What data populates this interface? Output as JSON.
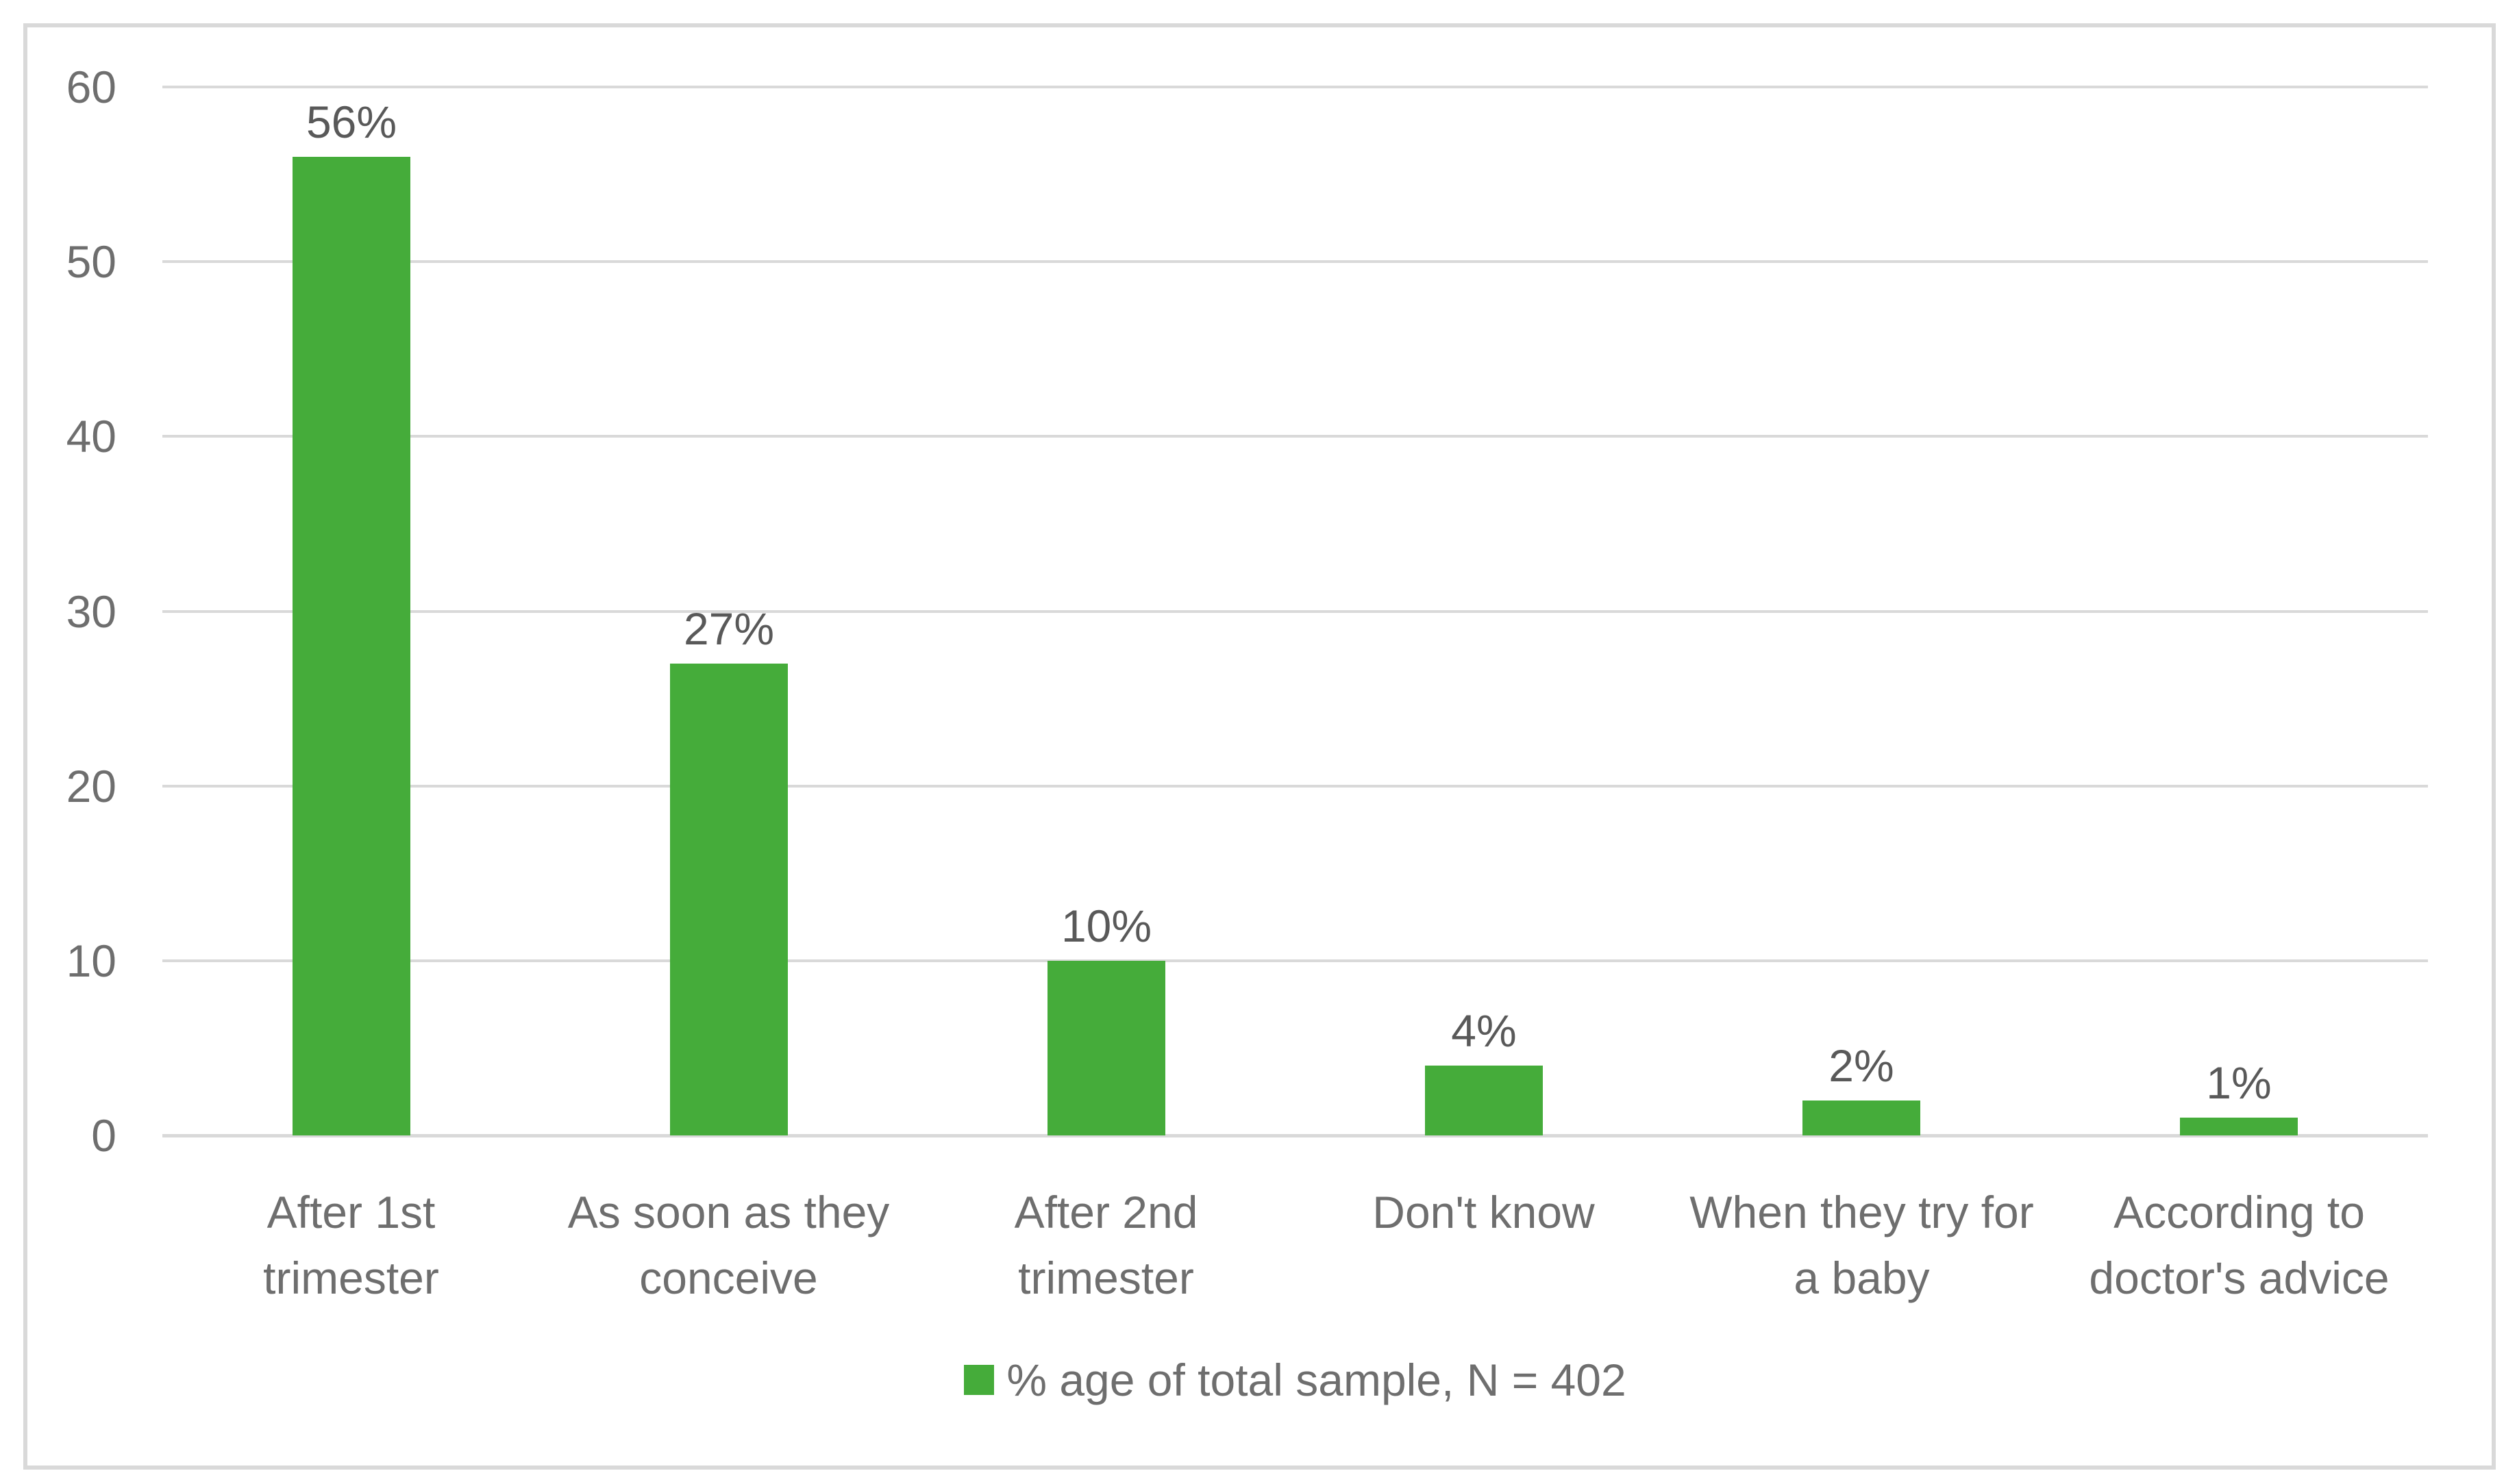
{
  "chart_data": {
    "type": "bar",
    "title": "",
    "xlabel": "",
    "ylabel": "",
    "categories": [
      "After 1st\ntrimester",
      "As soon as they\nconceive",
      "After 2nd\ntrimester",
      "Don't know",
      "When they try for\na baby",
      "According to\ndoctor's advice"
    ],
    "values": [
      56,
      27,
      10,
      4,
      2,
      1
    ],
    "data_labels": [
      "56%",
      "27%",
      "10%",
      "4%",
      "2%",
      "1%"
    ],
    "ylim": [
      0,
      60
    ],
    "yticks": [
      0,
      10,
      20,
      30,
      40,
      50,
      60
    ],
    "grid": "horizontal",
    "legend": {
      "position": "bottom",
      "items": [
        {
          "label": "% age of total sample, N = 402",
          "color": "#45AC3A"
        }
      ]
    }
  },
  "colors": {
    "bar": "#45AC3A",
    "gridline": "#D9D9D9",
    "border": "#D9D9D9",
    "tick_text": "#6E6E6E",
    "category_text": "#6E6E6E",
    "value_text": "#595959",
    "legend_text": "#6E6E6E",
    "background": "#FFFFFF"
  }
}
